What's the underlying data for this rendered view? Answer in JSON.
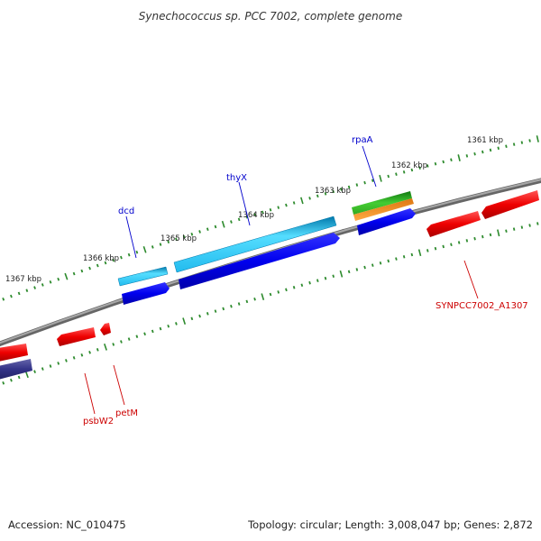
{
  "title": "Synechococcus sp. PCC 7002, complete genome",
  "ticks": [
    {
      "label": "1367 kbp"
    },
    {
      "label": "1366 kbp"
    },
    {
      "label": "1365 kbp"
    },
    {
      "label": "1364 kbp"
    },
    {
      "label": "1363 kbp"
    },
    {
      "label": "1362 kbp"
    },
    {
      "label": "1361 kbp"
    }
  ],
  "genes": {
    "dcd": "dcd",
    "thyX": "thyX",
    "rpaA": "rpaA",
    "synpcc": "SYNPCC7002_A1307",
    "psbW2": "psbW2",
    "petM": "petM"
  },
  "colors": {
    "forward_label": "#0000cc",
    "reverse_label": "#cc0000",
    "backbone": "#888888",
    "tick": "#2e8b2e",
    "cyan_feature": "#33ccff",
    "blue_feature": "#0000ee",
    "red_feature": "#ee0000",
    "green_feature": "#33cc33",
    "orange_feature": "#ff9933",
    "purple_feature": "#333388"
  },
  "footer": {
    "accession": "Accession: NC_010475",
    "summary": "Topology: circular; Length: 3,008,047 bp; Genes: 2,872"
  }
}
